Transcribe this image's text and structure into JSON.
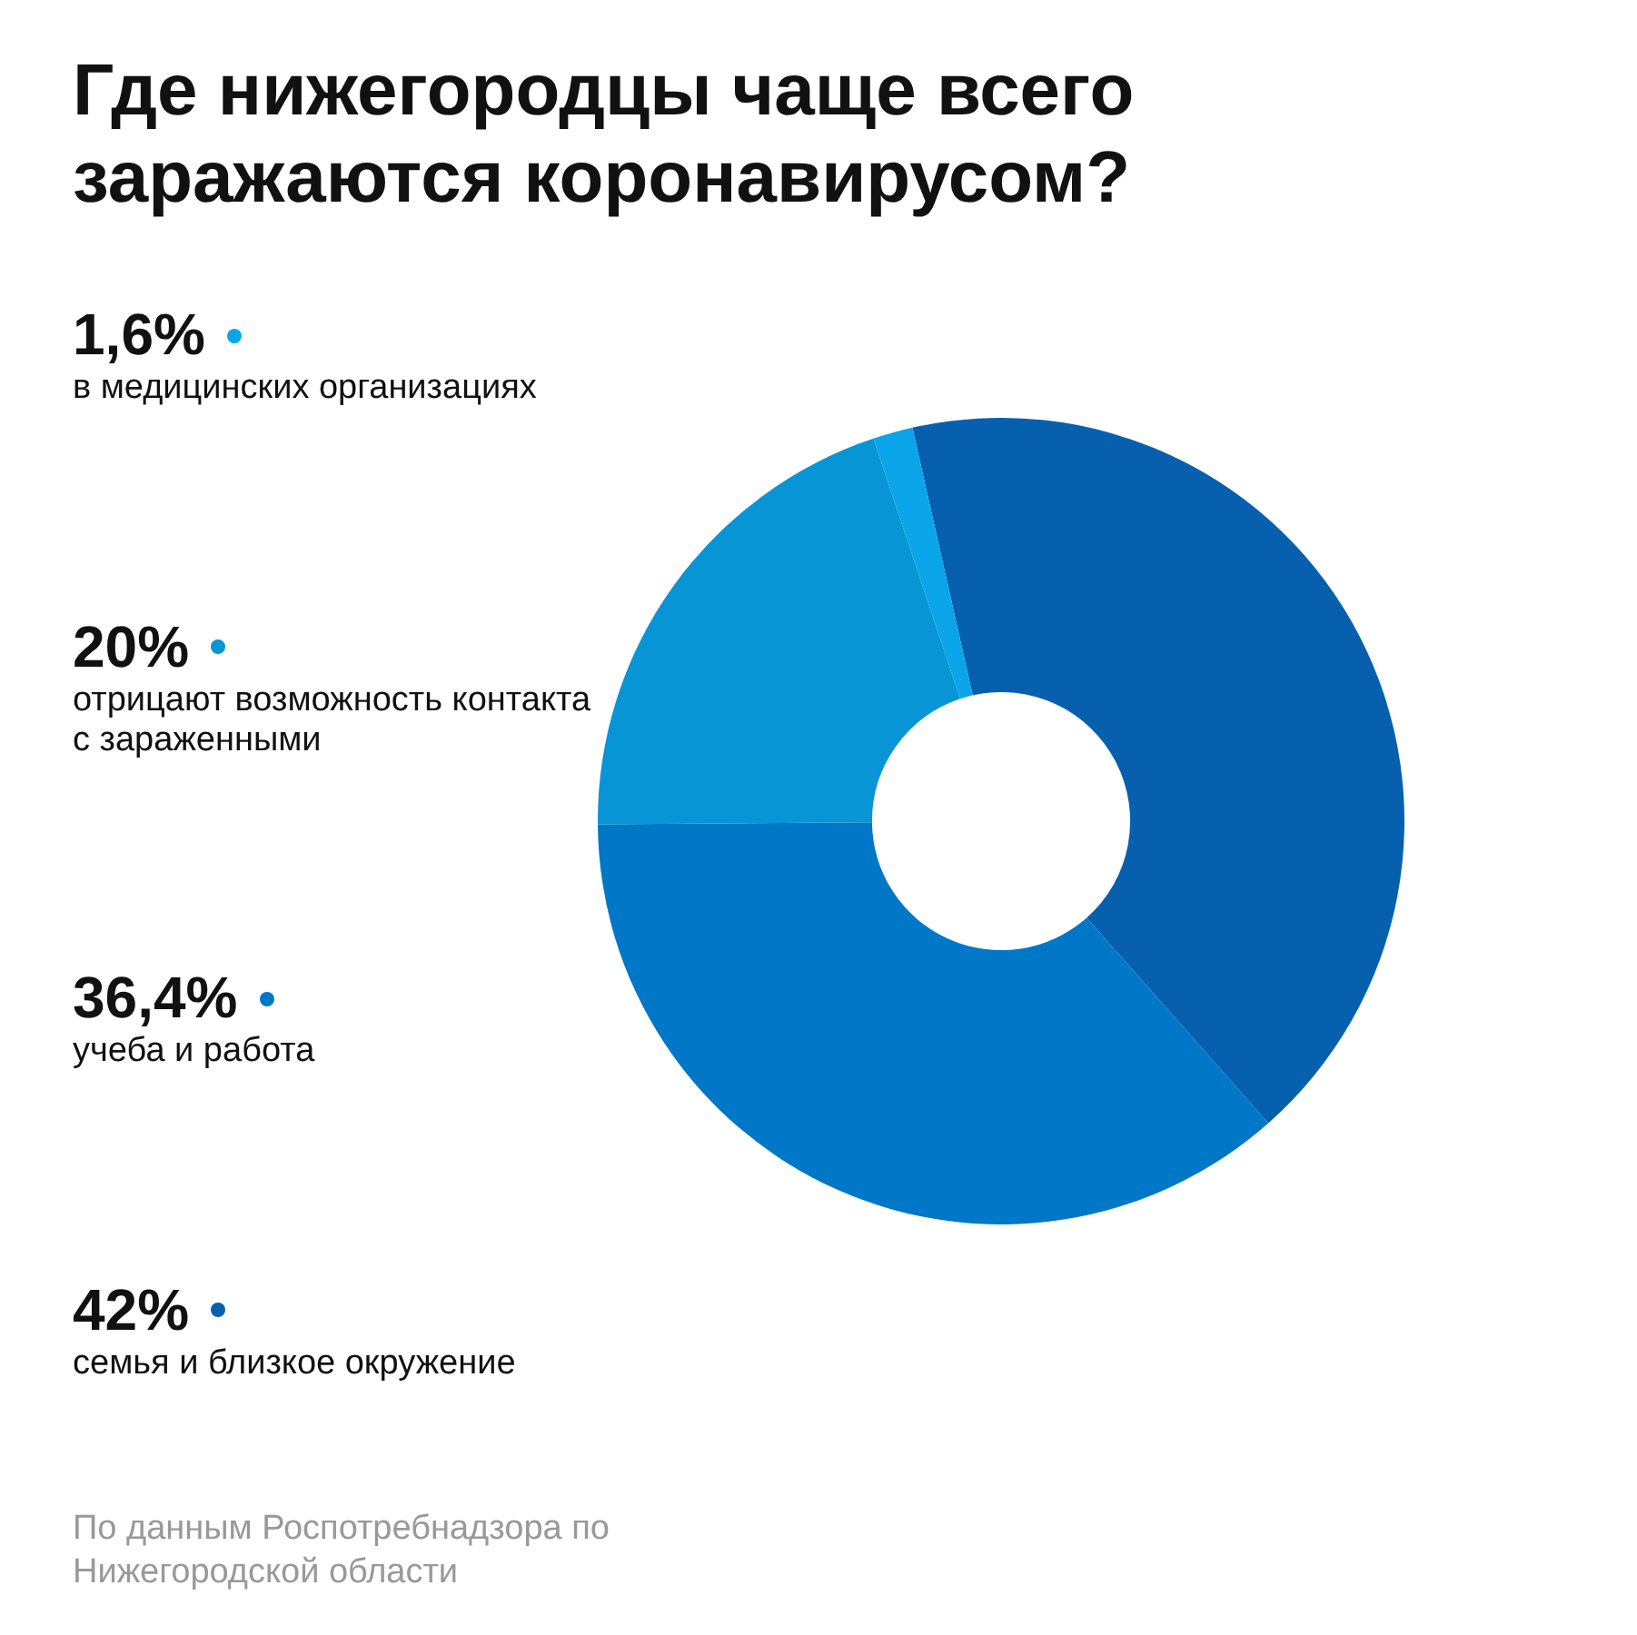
{
  "chart_data": {
    "type": "donut",
    "title": "Где нижегородцы чаще всего заражаются коронавирусом?",
    "categories": [
      "семья и близкое окружение",
      "учеба и работа",
      "отрицают возможность контакта с зараженными",
      "в медицинских организациях"
    ],
    "values": [
      42,
      36.4,
      20,
      1.6
    ],
    "value_labels": [
      "42%",
      "36,4%",
      "20%",
      "1,6%"
    ],
    "colors": [
      "#0760ae",
      "#0177c8",
      "#0895d6",
      "#0aa5e8"
    ],
    "legend": "left",
    "annotations": [
      "По данным Роспотребнадзора по Нижегородской области"
    ]
  }
}
